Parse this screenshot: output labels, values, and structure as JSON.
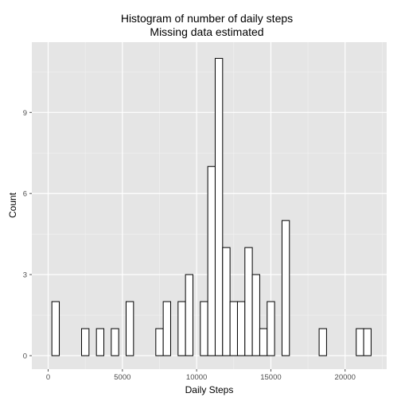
{
  "chart_data": {
    "type": "bar",
    "subtype": "histogram",
    "title": "Histogram of number of daily steps",
    "subtitle": "Missing data estimated",
    "xlabel": "Daily Steps",
    "ylabel": "Count",
    "xlim": [
      -1100,
      22800
    ],
    "ylim": [
      -0.5,
      11.6
    ],
    "xticks": [
      0,
      5000,
      10000,
      15000,
      20000
    ],
    "xtick_labels": [
      "0",
      "5000",
      "10000",
      "15000",
      "20000"
    ],
    "yticks": [
      0,
      3,
      6,
      9
    ],
    "ytick_labels": [
      "0",
      "3",
      "6",
      "9"
    ],
    "grid": true,
    "bin_width": 500,
    "bins_start": -250,
    "bin_count": 44,
    "values": [
      0,
      2,
      0,
      0,
      0,
      1,
      0,
      1,
      0,
      1,
      0,
      2,
      0,
      0,
      0,
      1,
      2,
      0,
      2,
      3,
      0,
      2,
      7,
      11,
      4,
      2,
      2,
      4,
      3,
      1,
      2,
      0,
      5,
      0,
      0,
      0,
      0,
      1,
      0,
      0,
      0,
      0,
      1,
      1
    ],
    "bar_fill": "#ffffff",
    "bar_stroke": "#000000",
    "panel_background": "#e5e5e5",
    "grid_major_color": "#ffffff",
    "grid_minor_color": "#f2f2f2"
  }
}
